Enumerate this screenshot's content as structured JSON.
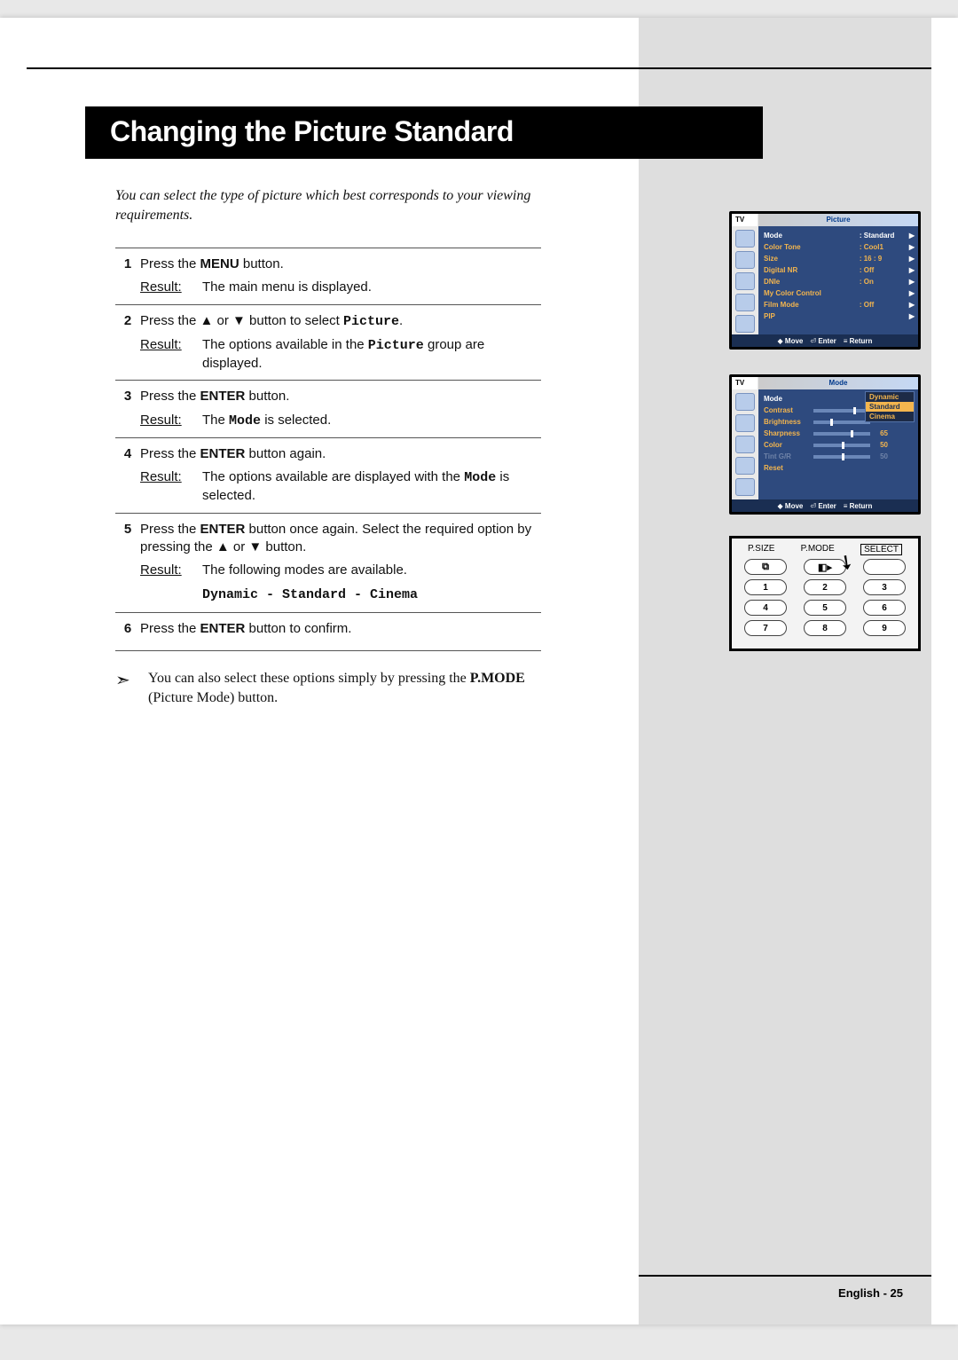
{
  "title": "Changing the Picture Standard",
  "intro": "You can select the type of picture which best corresponds to your viewing requirements.",
  "steps": [
    {
      "num": "1",
      "line_parts": [
        "Press the ",
        {
          "b": "MENU"
        },
        " button."
      ],
      "result": "The main menu is displayed."
    },
    {
      "num": "2",
      "line_parts": [
        "Press the ▲ or ▼ button to select ",
        {
          "m": "Picture"
        },
        "."
      ],
      "result_parts": [
        "The options available in the ",
        {
          "m": "Picture"
        },
        " group are displayed."
      ]
    },
    {
      "num": "3",
      "line_parts": [
        "Press the ",
        {
          "b": "ENTER"
        },
        " button."
      ],
      "result_parts": [
        "The ",
        {
          "m": "Mode"
        },
        " is selected."
      ]
    },
    {
      "num": "4",
      "line_parts": [
        "Press the ",
        {
          "b": "ENTER"
        },
        " button again."
      ],
      "result_parts": [
        "The options available are displayed with the ",
        {
          "m": "Mode"
        },
        " is selected."
      ]
    },
    {
      "num": "5",
      "line_parts": [
        "Press the ",
        {
          "b": "ENTER"
        },
        " button once again. Select the required option by pressing the ▲ or ▼ button."
      ],
      "result": "The following modes are available.",
      "modes": "Dynamic - Standard - Cinema"
    },
    {
      "num": "6",
      "line_parts": [
        "Press the ",
        {
          "b": "ENTER"
        },
        " button to confirm."
      ]
    }
  ],
  "result_label": "Result:",
  "note_parts": [
    "You can also select these options simply by pressing the ",
    {
      "b": "P.MODE"
    },
    " (Picture Mode) button."
  ],
  "osd1": {
    "tv": "TV",
    "tab": "Picture",
    "rows": [
      {
        "label": "Mode",
        "val": ": Standard",
        "sel": true
      },
      {
        "label": "Color Tone",
        "val": ": Cool1"
      },
      {
        "label": "Size",
        "val": ": 16 : 9"
      },
      {
        "label": "Digital NR",
        "val": ": Off"
      },
      {
        "label": "DNIe",
        "val": ": On"
      },
      {
        "label": "My Color Control",
        "val": ""
      },
      {
        "label": "Film Mode",
        "val": ": Off"
      },
      {
        "label": "PIP",
        "val": ""
      }
    ],
    "footer": {
      "move": "Move",
      "enter": "Enter",
      "return": "Return"
    }
  },
  "osd2": {
    "tv": "TV",
    "tab": "Mode",
    "rows": [
      {
        "label": "Mode",
        "val": ":",
        "sel": true
      },
      {
        "label": "Contrast",
        "slider": "sld-70",
        "num": ""
      },
      {
        "label": "Brightness",
        "slider": "sld-30",
        "num": ""
      },
      {
        "label": "Sharpness",
        "slider": "sld-65",
        "num": "65"
      },
      {
        "label": "Color",
        "slider": "sld-50",
        "num": "50"
      },
      {
        "label": "Tint G/R",
        "slider": "sld-50",
        "num": "50",
        "dim": true
      },
      {
        "label": "Reset",
        "val": ""
      }
    ],
    "popup": [
      "Dynamic",
      "Standard",
      "Cinema"
    ],
    "popup_hl": 1,
    "footer": {
      "move": "Move",
      "enter": "Enter",
      "return": "Return"
    }
  },
  "remote": {
    "labels": [
      "P.SIZE",
      "P.MODE",
      "SELECT"
    ],
    "row0": [
      "⧉",
      "◧▸",
      ""
    ],
    "rows": [
      [
        "1",
        "2",
        "3"
      ],
      [
        "4",
        "5",
        "6"
      ],
      [
        "7",
        "8",
        "9"
      ]
    ]
  },
  "page_num": "English - 25",
  "colors": {
    "sidebar": "#dedede",
    "osd_bg": "#2e4a7e",
    "osd_accent": "#f3b54e"
  }
}
